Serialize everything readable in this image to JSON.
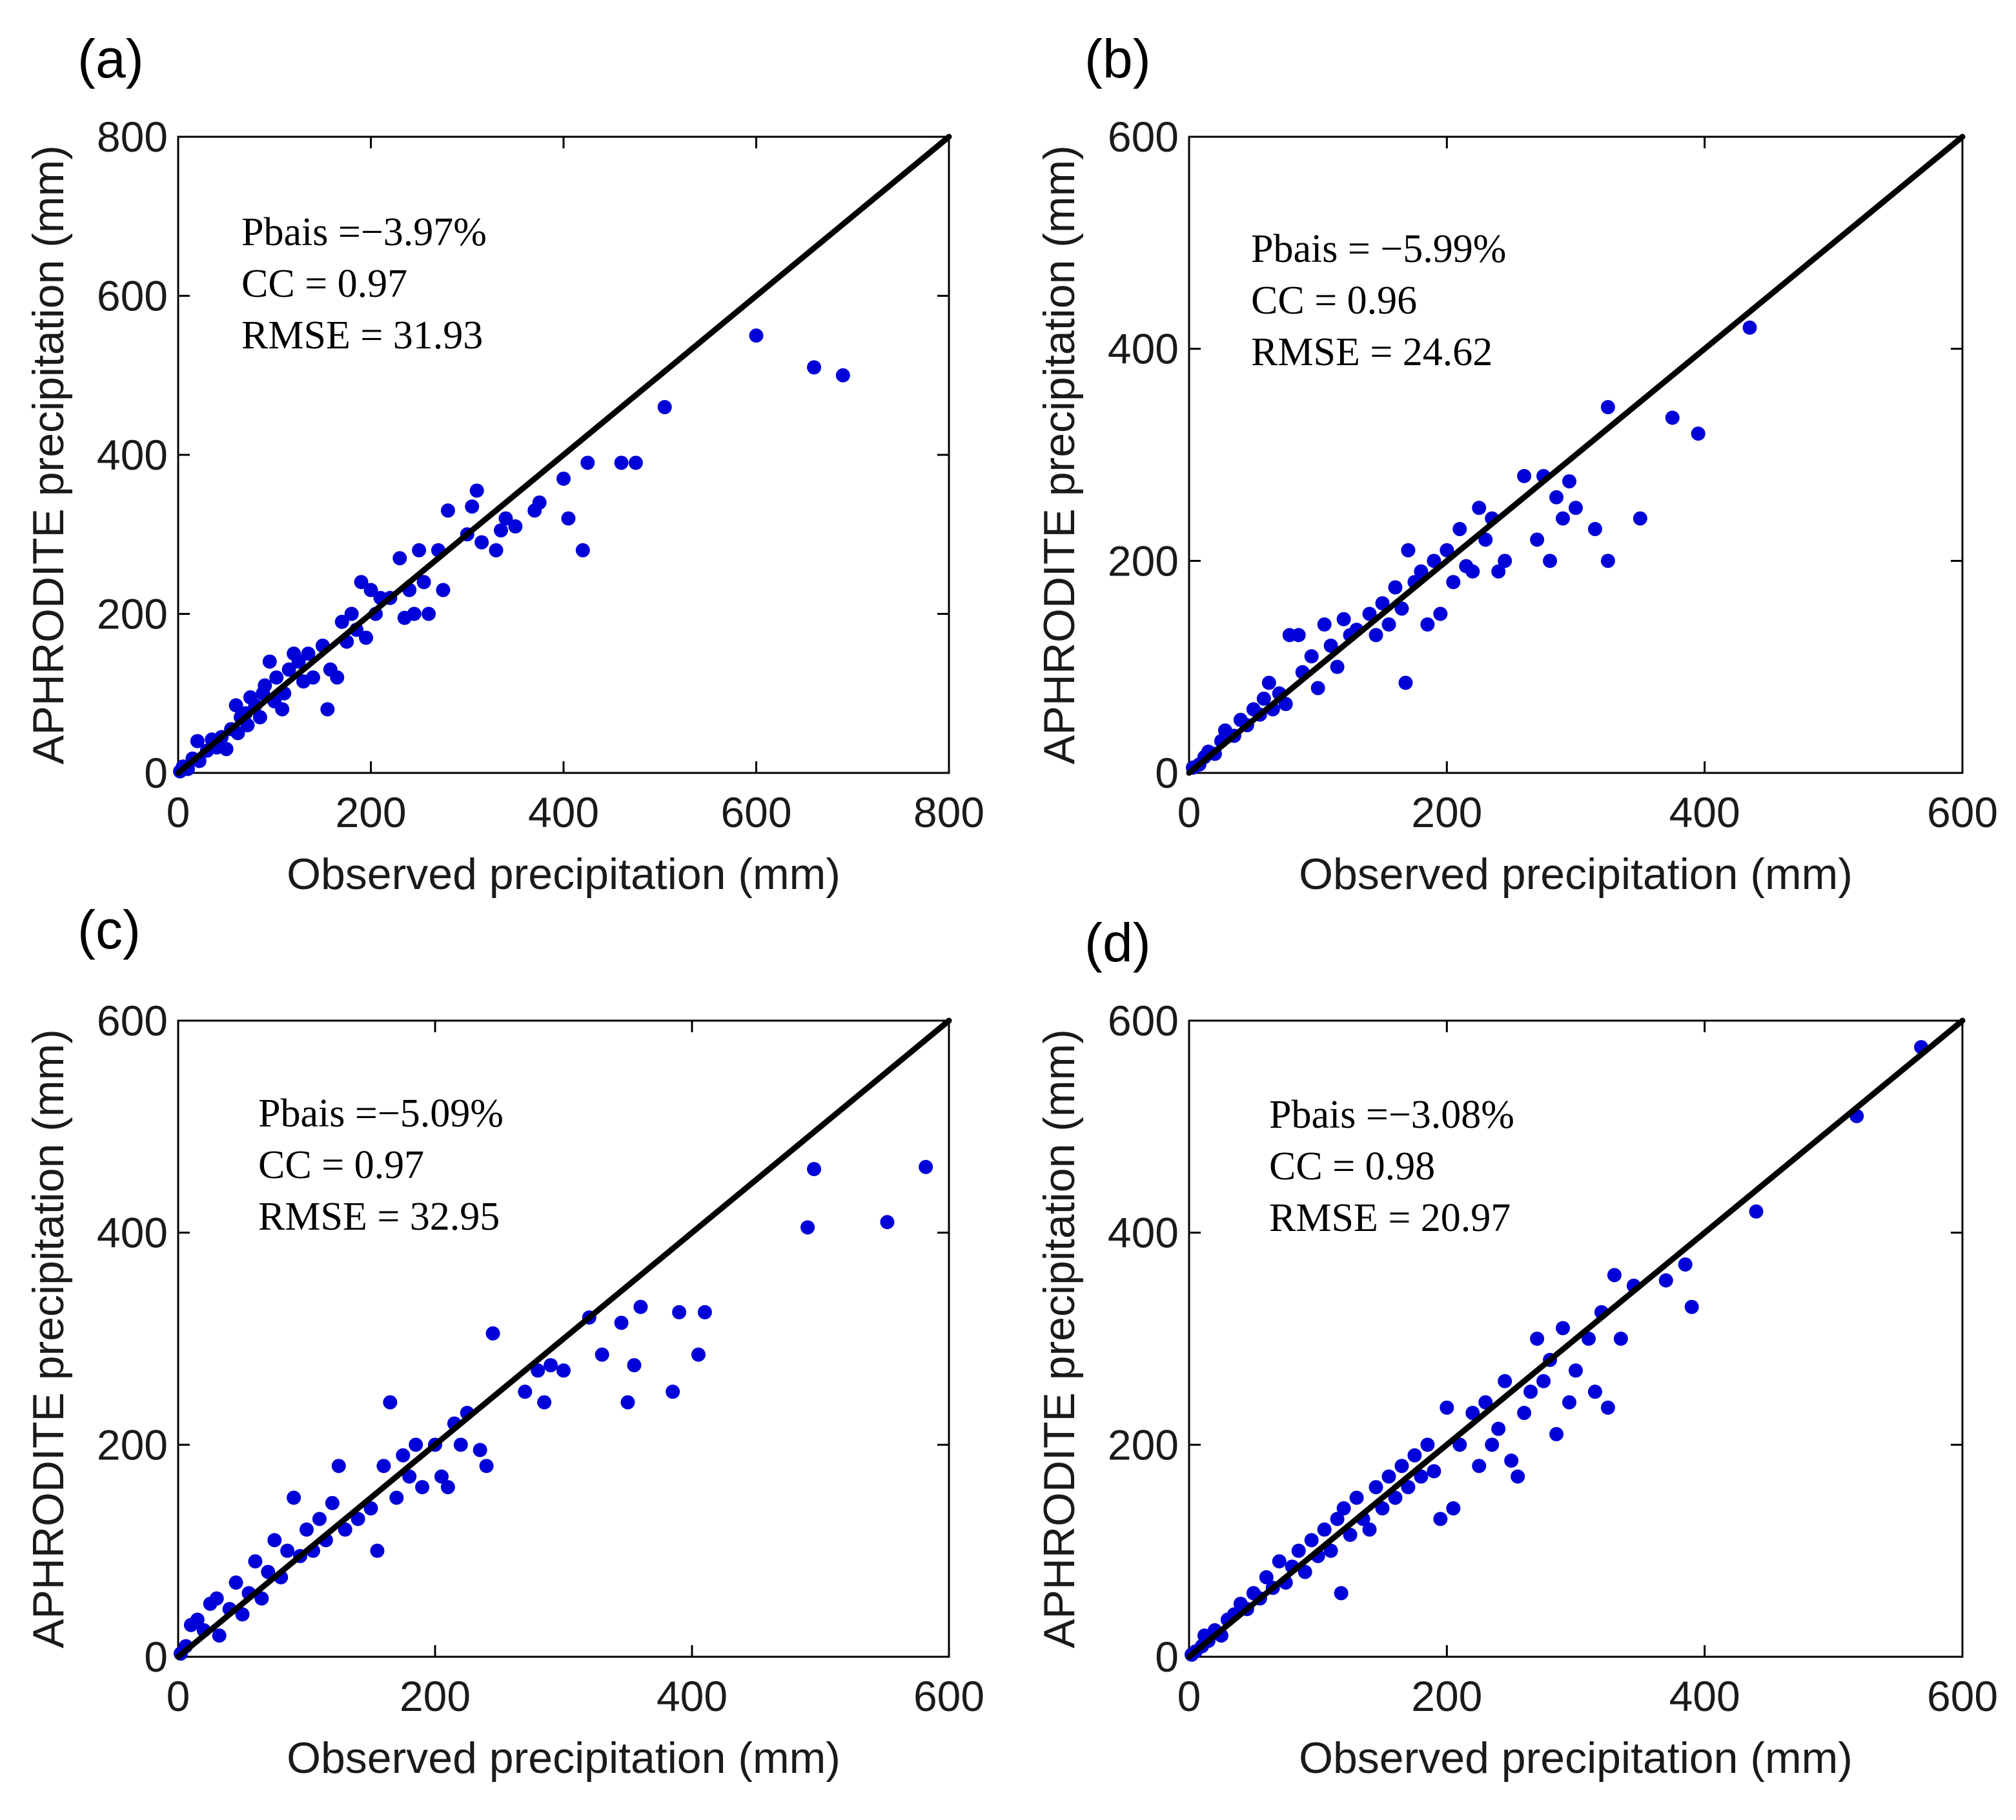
{
  "figure": {
    "panels": [
      "a",
      "b",
      "c",
      "d"
    ],
    "x_axis_label": "Observed precipitation (mm)",
    "y_axis_label": "APHRODITE precipitation (mm)"
  },
  "colors": {
    "points": "#0000d8",
    "line": "#000000",
    "axes": "#000000"
  },
  "chart_data": [
    {
      "type": "scatter",
      "panel_label": "(a)",
      "xlim": [
        0,
        800
      ],
      "ylim": [
        0,
        800
      ],
      "xticks": [
        0,
        200,
        400,
        600,
        800
      ],
      "yticks": [
        0,
        200,
        400,
        600,
        800
      ],
      "xlabel": "Observed precipitation (mm)",
      "ylabel": "APHRODITE precipitation (mm)",
      "reference_line": "1:1",
      "stats": [
        "Pbais =−3.97%",
        "CC = 0.97",
        "RMSE = 31.93"
      ],
      "points": [
        [
          2,
          2
        ],
        [
          5,
          8
        ],
        [
          10,
          5
        ],
        [
          15,
          18
        ],
        [
          20,
          40
        ],
        [
          22,
          15
        ],
        [
          30,
          28
        ],
        [
          35,
          42
        ],
        [
          40,
          32
        ],
        [
          45,
          45
        ],
        [
          50,
          30
        ],
        [
          55,
          55
        ],
        [
          60,
          85
        ],
        [
          62,
          50
        ],
        [
          65,
          70
        ],
        [
          70,
          75
        ],
        [
          72,
          60
        ],
        [
          75,
          95
        ],
        [
          80,
          85
        ],
        [
          85,
          70
        ],
        [
          88,
          100
        ],
        [
          90,
          110
        ],
        [
          95,
          140
        ],
        [
          100,
          90
        ],
        [
          102,
          120
        ],
        [
          108,
          80
        ],
        [
          110,
          100
        ],
        [
          115,
          130
        ],
        [
          120,
          150
        ],
        [
          125,
          140
        ],
        [
          130,
          115
        ],
        [
          135,
          150
        ],
        [
          140,
          120
        ],
        [
          150,
          160
        ],
        [
          155,
          80
        ],
        [
          158,
          130
        ],
        [
          165,
          120
        ],
        [
          170,
          190
        ],
        [
          175,
          165
        ],
        [
          180,
          200
        ],
        [
          185,
          180
        ],
        [
          190,
          240
        ],
        [
          195,
          170
        ],
        [
          200,
          230
        ],
        [
          205,
          200
        ],
        [
          210,
          220
        ],
        [
          220,
          220
        ],
        [
          230,
          270
        ],
        [
          235,
          195
        ],
        [
          240,
          230
        ],
        [
          245,
          200
        ],
        [
          250,
          280
        ],
        [
          255,
          240
        ],
        [
          260,
          200
        ],
        [
          270,
          280
        ],
        [
          275,
          230
        ],
        [
          280,
          330
        ],
        [
          300,
          300
        ],
        [
          305,
          335
        ],
        [
          310,
          355
        ],
        [
          315,
          290
        ],
        [
          330,
          280
        ],
        [
          335,
          305
        ],
        [
          340,
          320
        ],
        [
          350,
          310
        ],
        [
          370,
          330
        ],
        [
          375,
          340
        ],
        [
          400,
          370
        ],
        [
          405,
          320
        ],
        [
          420,
          280
        ],
        [
          425,
          390
        ],
        [
          460,
          390
        ],
        [
          475,
          390
        ],
        [
          505,
          460
        ],
        [
          600,
          550
        ],
        [
          660,
          510
        ],
        [
          690,
          500
        ]
      ]
    },
    {
      "type": "scatter",
      "panel_label": "(b)",
      "xlim": [
        0,
        600
      ],
      "ylim": [
        0,
        600
      ],
      "xticks": [
        0,
        200,
        400,
        600
      ],
      "yticks": [
        0,
        200,
        400,
        600
      ],
      "xlabel": "Observed precipitation (mm)",
      "ylabel": "APHRODITE precipitation (mm)",
      "reference_line": "1:1",
      "stats": [
        "Pbais = −5.99%",
        "CC = 0.96",
        "RMSE = 24.62"
      ],
      "points": [
        [
          3,
          5
        ],
        [
          8,
          8
        ],
        [
          12,
          15
        ],
        [
          15,
          20
        ],
        [
          20,
          18
        ],
        [
          25,
          30
        ],
        [
          28,
          40
        ],
        [
          35,
          35
        ],
        [
          40,
          50
        ],
        [
          45,
          45
        ],
        [
          50,
          60
        ],
        [
          55,
          55
        ],
        [
          58,
          70
        ],
        [
          62,
          85
        ],
        [
          65,
          60
        ],
        [
          70,
          75
        ],
        [
          75,
          65
        ],
        [
          78,
          130
        ],
        [
          85,
          130
        ],
        [
          88,
          95
        ],
        [
          95,
          110
        ],
        [
          100,
          80
        ],
        [
          105,
          140
        ],
        [
          110,
          120
        ],
        [
          115,
          100
        ],
        [
          120,
          145
        ],
        [
          125,
          130
        ],
        [
          130,
          135
        ],
        [
          140,
          150
        ],
        [
          145,
          130
        ],
        [
          150,
          160
        ],
        [
          155,
          140
        ],
        [
          160,
          175
        ],
        [
          165,
          155
        ],
        [
          168,
          85
        ],
        [
          170,
          210
        ],
        [
          175,
          180
        ],
        [
          180,
          190
        ],
        [
          185,
          140
        ],
        [
          190,
          200
        ],
        [
          195,
          150
        ],
        [
          200,
          210
        ],
        [
          205,
          180
        ],
        [
          210,
          230
        ],
        [
          215,
          195
        ],
        [
          220,
          190
        ],
        [
          225,
          250
        ],
        [
          230,
          220
        ],
        [
          235,
          240
        ],
        [
          240,
          190
        ],
        [
          245,
          200
        ],
        [
          260,
          280
        ],
        [
          270,
          220
        ],
        [
          275,
          280
        ],
        [
          280,
          200
        ],
        [
          285,
          260
        ],
        [
          290,
          240
        ],
        [
          295,
          275
        ],
        [
          300,
          250
        ],
        [
          315,
          230
        ],
        [
          325,
          200
        ],
        [
          325,
          345
        ],
        [
          350,
          240
        ],
        [
          375,
          335
        ],
        [
          395,
          320
        ],
        [
          435,
          420
        ]
      ]
    },
    {
      "type": "scatter",
      "panel_label": "(c)",
      "xlim": [
        0,
        600
      ],
      "ylim": [
        0,
        600
      ],
      "xticks": [
        0,
        200,
        400,
        600
      ],
      "yticks": [
        0,
        200,
        400,
        600
      ],
      "xlabel": "Observed precipitation (mm)",
      "ylabel": "APHRODITE precipitation (mm)",
      "reference_line": "1:1",
      "stats": [
        "Pbais =−5.09%",
        "CC = 0.97",
        "RMSE = 32.95"
      ],
      "points": [
        [
          2,
          3
        ],
        [
          6,
          10
        ],
        [
          10,
          30
        ],
        [
          15,
          35
        ],
        [
          20,
          25
        ],
        [
          25,
          50
        ],
        [
          30,
          55
        ],
        [
          32,
          20
        ],
        [
          40,
          45
        ],
        [
          45,
          70
        ],
        [
          50,
          40
        ],
        [
          55,
          60
        ],
        [
          60,
          90
        ],
        [
          65,
          55
        ],
        [
          70,
          80
        ],
        [
          75,
          110
        ],
        [
          80,
          75
        ],
        [
          85,
          100
        ],
        [
          90,
          150
        ],
        [
          95,
          95
        ],
        [
          100,
          120
        ],
        [
          105,
          100
        ],
        [
          110,
          130
        ],
        [
          115,
          110
        ],
        [
          120,
          145
        ],
        [
          125,
          180
        ],
        [
          130,
          120
        ],
        [
          140,
          130
        ],
        [
          150,
          140
        ],
        [
          155,
          100
        ],
        [
          160,
          180
        ],
        [
          165,
          240
        ],
        [
          170,
          150
        ],
        [
          175,
          190
        ],
        [
          180,
          170
        ],
        [
          185,
          200
        ],
        [
          190,
          160
        ],
        [
          200,
          200
        ],
        [
          205,
          170
        ],
        [
          210,
          160
        ],
        [
          215,
          220
        ],
        [
          220,
          200
        ],
        [
          225,
          230
        ],
        [
          235,
          195
        ],
        [
          240,
          180
        ],
        [
          245,
          305
        ],
        [
          270,
          250
        ],
        [
          280,
          270
        ],
        [
          285,
          240
        ],
        [
          290,
          275
        ],
        [
          300,
          270
        ],
        [
          320,
          320
        ],
        [
          330,
          285
        ],
        [
          345,
          315
        ],
        [
          350,
          240
        ],
        [
          355,
          275
        ],
        [
          360,
          330
        ],
        [
          385,
          250
        ],
        [
          390,
          325
        ],
        [
          405,
          285
        ],
        [
          410,
          325
        ],
        [
          490,
          405
        ],
        [
          495,
          460
        ],
        [
          552,
          410
        ],
        [
          582,
          462
        ]
      ]
    },
    {
      "type": "scatter",
      "panel_label": "(d)",
      "xlim": [
        0,
        600
      ],
      "ylim": [
        0,
        600
      ],
      "xticks": [
        0,
        200,
        400,
        600
      ],
      "yticks": [
        0,
        200,
        400,
        600
      ],
      "xlabel": "Observed precipitation (mm)",
      "ylabel": "APHRODITE precipitation (mm)",
      "reference_line": "1:1",
      "stats": [
        "Pbais =−3.08%",
        "CC = 0.98",
        "RMSE = 20.97"
      ],
      "points": [
        [
          2,
          2
        ],
        [
          5,
          5
        ],
        [
          10,
          10
        ],
        [
          12,
          20
        ],
        [
          15,
          15
        ],
        [
          20,
          25
        ],
        [
          25,
          20
        ],
        [
          30,
          35
        ],
        [
          35,
          40
        ],
        [
          40,
          50
        ],
        [
          45,
          45
        ],
        [
          50,
          60
        ],
        [
          55,
          55
        ],
        [
          60,
          75
        ],
        [
          65,
          65
        ],
        [
          70,
          90
        ],
        [
          75,
          70
        ],
        [
          80,
          85
        ],
        [
          85,
          100
        ],
        [
          90,
          80
        ],
        [
          95,
          110
        ],
        [
          100,
          95
        ],
        [
          105,
          120
        ],
        [
          110,
          100
        ],
        [
          115,
          130
        ],
        [
          118,
          60
        ],
        [
          120,
          140
        ],
        [
          125,
          115
        ],
        [
          130,
          150
        ],
        [
          135,
          130
        ],
        [
          140,
          120
        ],
        [
          145,
          160
        ],
        [
          150,
          140
        ],
        [
          155,
          170
        ],
        [
          160,
          150
        ],
        [
          165,
          180
        ],
        [
          170,
          160
        ],
        [
          175,
          190
        ],
        [
          180,
          170
        ],
        [
          185,
          200
        ],
        [
          190,
          175
        ],
        [
          195,
          130
        ],
        [
          200,
          235
        ],
        [
          205,
          140
        ],
        [
          210,
          200
        ],
        [
          220,
          230
        ],
        [
          225,
          180
        ],
        [
          230,
          240
        ],
        [
          235,
          200
        ],
        [
          240,
          215
        ],
        [
          245,
          260
        ],
        [
          250,
          185
        ],
        [
          255,
          170
        ],
        [
          260,
          230
        ],
        [
          265,
          250
        ],
        [
          270,
          300
        ],
        [
          275,
          260
        ],
        [
          280,
          280
        ],
        [
          285,
          210
        ],
        [
          290,
          310
        ],
        [
          295,
          240
        ],
        [
          300,
          270
        ],
        [
          310,
          300
        ],
        [
          315,
          250
        ],
        [
          320,
          325
        ],
        [
          325,
          235
        ],
        [
          330,
          360
        ],
        [
          335,
          300
        ],
        [
          345,
          350
        ],
        [
          370,
          355
        ],
        [
          385,
          370
        ],
        [
          390,
          330
        ],
        [
          440,
          420
        ],
        [
          518,
          510
        ],
        [
          568,
          575
        ]
      ]
    }
  ]
}
